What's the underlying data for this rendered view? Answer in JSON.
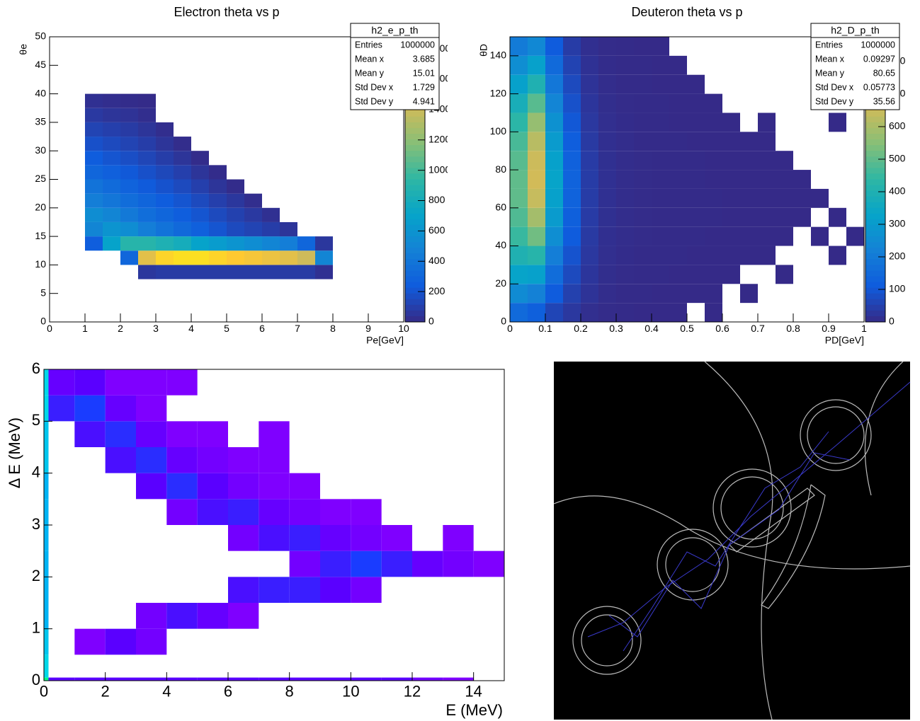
{
  "chart_data": [
    {
      "type": "heatmap",
      "title": "Electron theta vs p",
      "xlabel": "Pe[GeV]",
      "ylabel": "θe",
      "xlim": [
        0,
        10
      ],
      "ylim": [
        0,
        50
      ],
      "xticks": [
        0,
        1,
        2,
        3,
        4,
        5,
        6,
        7,
        8,
        9,
        10
      ],
      "yticks": [
        0,
        5,
        10,
        15,
        20,
        25,
        30,
        35,
        40,
        45,
        50
      ],
      "zlim": [
        0,
        1880
      ],
      "zticks": [
        0,
        200,
        400,
        600,
        800,
        1000,
        1200,
        1400,
        1600,
        1800
      ],
      "palette": [
        "#352a87",
        "#0f5cdd",
        "#1481d6",
        "#06a4ca",
        "#2eb7a4",
        "#87bf77",
        "#d1bb59",
        "#fec832",
        "#f9fb0e"
      ],
      "x_bins": [
        0.5,
        1,
        1.5,
        2,
        2.5,
        3,
        3.5,
        4,
        4.5,
        5,
        5.5,
        6,
        6.5,
        7,
        7.5,
        8
      ],
      "y_bins": [
        7.5,
        10,
        12.5,
        15,
        17.5,
        20,
        22.5,
        25,
        27.5,
        30,
        32.5,
        35,
        37.5,
        40
      ],
      "z": [
        [
          0,
          0,
          0,
          0,
          60,
          80,
          80,
          80,
          80,
          80,
          80,
          80,
          80,
          80,
          30
        ],
        [
          0,
          0,
          0,
          300,
          1500,
          1700,
          1750,
          1750,
          1700,
          1650,
          1600,
          1550,
          1500,
          1400,
          500
        ],
        [
          0,
          250,
          700,
          900,
          900,
          850,
          800,
          700,
          650,
          600,
          550,
          500,
          450,
          300,
          60
        ],
        [
          0,
          500,
          600,
          550,
          450,
          380,
          320,
          260,
          200,
          150,
          120,
          90,
          50,
          0,
          0
        ],
        [
          0,
          550,
          500,
          420,
          350,
          300,
          250,
          200,
          150,
          110,
          70,
          30,
          0,
          0,
          0
        ],
        [
          0,
          450,
          400,
          340,
          290,
          240,
          200,
          150,
          100,
          60,
          20,
          0,
          0,
          0,
          0
        ],
        [
          0,
          380,
          330,
          280,
          230,
          190,
          150,
          100,
          50,
          10,
          0,
          0,
          0,
          0,
          0
        ],
        [
          0,
          300,
          260,
          220,
          180,
          140,
          100,
          50,
          10,
          0,
          0,
          0,
          0,
          0,
          0
        ],
        [
          0,
          240,
          200,
          170,
          130,
          90,
          50,
          10,
          0,
          0,
          0,
          0,
          0,
          0,
          0
        ],
        [
          0,
          180,
          150,
          120,
          90,
          50,
          15,
          0,
          0,
          0,
          0,
          0,
          0,
          0,
          0
        ],
        [
          0,
          120,
          100,
          80,
          50,
          20,
          0,
          0,
          0,
          0,
          0,
          0,
          0,
          0,
          0
        ],
        [
          0,
          70,
          50,
          40,
          20,
          0,
          0,
          0,
          0,
          0,
          0,
          0,
          0,
          0,
          0
        ],
        [
          0,
          30,
          20,
          10,
          5,
          0,
          0,
          0,
          0,
          0,
          0,
          0,
          0,
          0,
          0
        ]
      ],
      "stats": {
        "title": "h2_e_p_th",
        "rows": [
          {
            "label": "Entries",
            "value": 1000000
          },
          {
            "label": "Mean x",
            "value": 3.685
          },
          {
            "label": "Mean y",
            "value": 15.01
          },
          {
            "label": "Std Dev x",
            "value": 1.729
          },
          {
            "label": "Std Dev y",
            "value": 4.941
          }
        ]
      }
    },
    {
      "type": "heatmap",
      "title": "Deuteron theta vs p",
      "xlabel": "PD[GeV]",
      "ylabel": "θD",
      "xlim": [
        0,
        1
      ],
      "ylim": [
        0,
        150
      ],
      "xticks": [
        0,
        0.1,
        0.2,
        0.3,
        0.4,
        0.5,
        0.6,
        0.7,
        0.8,
        0.9,
        1
      ],
      "yticks": [
        0,
        20,
        40,
        60,
        80,
        100,
        120,
        140
      ],
      "zlim": [
        0,
        876
      ],
      "zticks": [
        0,
        100,
        200,
        300,
        400,
        500,
        600,
        700,
        800
      ],
      "palette": [
        "#352a87",
        "#0f5cdd",
        "#1481d6",
        "#06a4ca",
        "#2eb7a4",
        "#87bf77",
        "#d1bb59",
        "#fec832",
        "#f9fb0e"
      ],
      "x_bins": [
        0,
        0.05,
        0.1,
        0.15,
        0.2,
        0.25,
        0.3,
        0.35,
        0.4,
        0.45,
        0.5,
        0.55,
        0.6,
        0.65,
        0.7,
        0.75,
        0.8,
        0.85,
        0.9,
        0.95,
        1
      ],
      "y_bins": [
        0,
        10,
        20,
        30,
        40,
        50,
        60,
        70,
        80,
        90,
        100,
        110,
        120,
        130,
        140,
        150
      ],
      "z": [
        [
          150,
          120,
          60,
          30,
          10,
          4,
          2,
          1,
          1,
          1,
          0,
          1,
          0,
          0,
          0,
          0,
          0,
          0,
          0,
          0
        ],
        [
          250,
          220,
          110,
          50,
          20,
          6,
          3,
          2,
          1,
          1,
          1,
          1,
          0,
          1,
          0,
          0,
          0,
          0,
          0,
          0
        ],
        [
          330,
          320,
          160,
          70,
          25,
          8,
          4,
          2,
          2,
          1,
          1,
          1,
          1,
          0,
          0,
          1,
          0,
          0,
          0,
          0
        ],
        [
          400,
          420,
          210,
          90,
          30,
          10,
          5,
          3,
          2,
          2,
          1,
          1,
          1,
          1,
          1,
          0,
          0,
          0,
          1,
          0
        ],
        [
          450,
          520,
          260,
          110,
          35,
          12,
          6,
          4,
          3,
          2,
          2,
          1,
          1,
          1,
          1,
          1,
          0,
          1,
          0,
          1
        ],
        [
          480,
          590,
          300,
          120,
          38,
          13,
          7,
          4,
          3,
          2,
          2,
          2,
          1,
          1,
          1,
          1,
          1,
          0,
          1,
          0
        ],
        [
          500,
          640,
          320,
          130,
          40,
          14,
          7,
          4,
          3,
          2,
          2,
          2,
          1,
          1,
          1,
          1,
          1,
          1,
          0,
          0
        ],
        [
          500,
          660,
          330,
          130,
          40,
          14,
          7,
          4,
          3,
          2,
          2,
          1,
          1,
          1,
          1,
          1,
          1,
          0,
          0,
          0
        ],
        [
          490,
          650,
          320,
          125,
          38,
          13,
          6,
          4,
          3,
          2,
          2,
          1,
          1,
          1,
          1,
          1,
          0,
          0,
          0,
          0
        ],
        [
          470,
          620,
          300,
          115,
          35,
          12,
          6,
          3,
          2,
          2,
          1,
          1,
          1,
          1,
          1,
          0,
          0,
          0,
          0,
          0
        ],
        [
          430,
          570,
          270,
          100,
          30,
          10,
          5,
          3,
          2,
          1,
          1,
          1,
          1,
          0,
          1,
          0,
          0,
          0,
          1,
          0
        ],
        [
          380,
          490,
          230,
          85,
          25,
          8,
          4,
          2,
          2,
          1,
          1,
          1,
          0,
          0,
          0,
          0,
          0,
          0,
          0,
          0
        ],
        [
          320,
          400,
          190,
          70,
          20,
          7,
          3,
          2,
          1,
          1,
          1,
          0,
          0,
          0,
          0,
          0,
          0,
          0,
          0,
          0
        ],
        [
          260,
          320,
          150,
          55,
          16,
          5,
          3,
          2,
          1,
          1,
          0,
          0,
          0,
          0,
          0,
          0,
          0,
          0,
          0,
          0
        ],
        [
          200,
          240,
          110,
          40,
          12,
          4,
          2,
          1,
          1,
          0,
          0,
          0,
          0,
          0,
          0,
          0,
          0,
          0,
          0,
          0
        ]
      ],
      "stats": {
        "title": "h2_D_p_th",
        "rows": [
          {
            "label": "Entries",
            "value": 1000000
          },
          {
            "label": "Mean x",
            "value": 0.09297
          },
          {
            "label": "Mean y",
            "value": 80.65
          },
          {
            "label": "Std Dev x",
            "value": 0.05773
          },
          {
            "label": "Std Dev y",
            "value": 35.56
          }
        ]
      }
    },
    {
      "type": "heatmap",
      "xlabel": "E (MeV)",
      "ylabel": "Δ E (MeV)",
      "xlim": [
        0,
        15
      ],
      "ylim": [
        0,
        6
      ],
      "xticks": [
        0,
        2,
        4,
        6,
        8,
        10,
        12,
        14
      ],
      "yticks": [
        0,
        1,
        2,
        3,
        4,
        5,
        6
      ],
      "zlim": [
        0,
        20
      ],
      "palette": [
        "#8b00ff",
        "#5a00ff",
        "#1a3cff",
        "#0090ff",
        "#00d8e8",
        "#00ff80"
      ],
      "x_bins": [
        0,
        0.15,
        1,
        2,
        3,
        4,
        5,
        6,
        7,
        8,
        9,
        10,
        11,
        12,
        13,
        14,
        15
      ],
      "y_bins": [
        0,
        0.06,
        0.5,
        1,
        1.5,
        2,
        2.5,
        3,
        3.5,
        4,
        4.5,
        5,
        5.5,
        6
      ],
      "z": [
        [
          20,
          4,
          4,
          4,
          4,
          4,
          4,
          4,
          4,
          4,
          4,
          4,
          4,
          2,
          1,
          0
        ],
        [
          16,
          0,
          0,
          0,
          0,
          0,
          0,
          0,
          0,
          0,
          0,
          0,
          0,
          0,
          0,
          0
        ],
        [
          15,
          0,
          1,
          4,
          2,
          0,
          0,
          0,
          0,
          0,
          0,
          0,
          0,
          0,
          0,
          0
        ],
        [
          14,
          0,
          0,
          0,
          2,
          5,
          3,
          1,
          0,
          0,
          0,
          0,
          0,
          0,
          0,
          0
        ],
        [
          14,
          0,
          0,
          0,
          0,
          0,
          0,
          5,
          6,
          6,
          4,
          2,
          0,
          0,
          0,
          0
        ],
        [
          14,
          0,
          0,
          0,
          0,
          0,
          0,
          0,
          0,
          2,
          6,
          8,
          6,
          3,
          2,
          1
        ],
        [
          14,
          0,
          0,
          0,
          0,
          0,
          0,
          2,
          5,
          6,
          3,
          2,
          1,
          0,
          1,
          0
        ],
        [
          14,
          0,
          0,
          0,
          0,
          2,
          5,
          6,
          3,
          2,
          1,
          1,
          0,
          0,
          0,
          0
        ],
        [
          14,
          0,
          0,
          0,
          4,
          7,
          4,
          2,
          1,
          1,
          0,
          0,
          0,
          0,
          0,
          0
        ],
        [
          15,
          0,
          0,
          5,
          7,
          3,
          2,
          1,
          1,
          0,
          0,
          0,
          0,
          0,
          0,
          0
        ],
        [
          15,
          0,
          5,
          7,
          3,
          1,
          1,
          0,
          1,
          0,
          0,
          0,
          0,
          0,
          0,
          0
        ],
        [
          16,
          6,
          8,
          3,
          1,
          0,
          0,
          0,
          0,
          0,
          0,
          0,
          0,
          0,
          0,
          0
        ],
        [
          16,
          3,
          4,
          1,
          1,
          1,
          0,
          0,
          0,
          0,
          0,
          0,
          0,
          0,
          0,
          0
        ]
      ]
    }
  ]
}
